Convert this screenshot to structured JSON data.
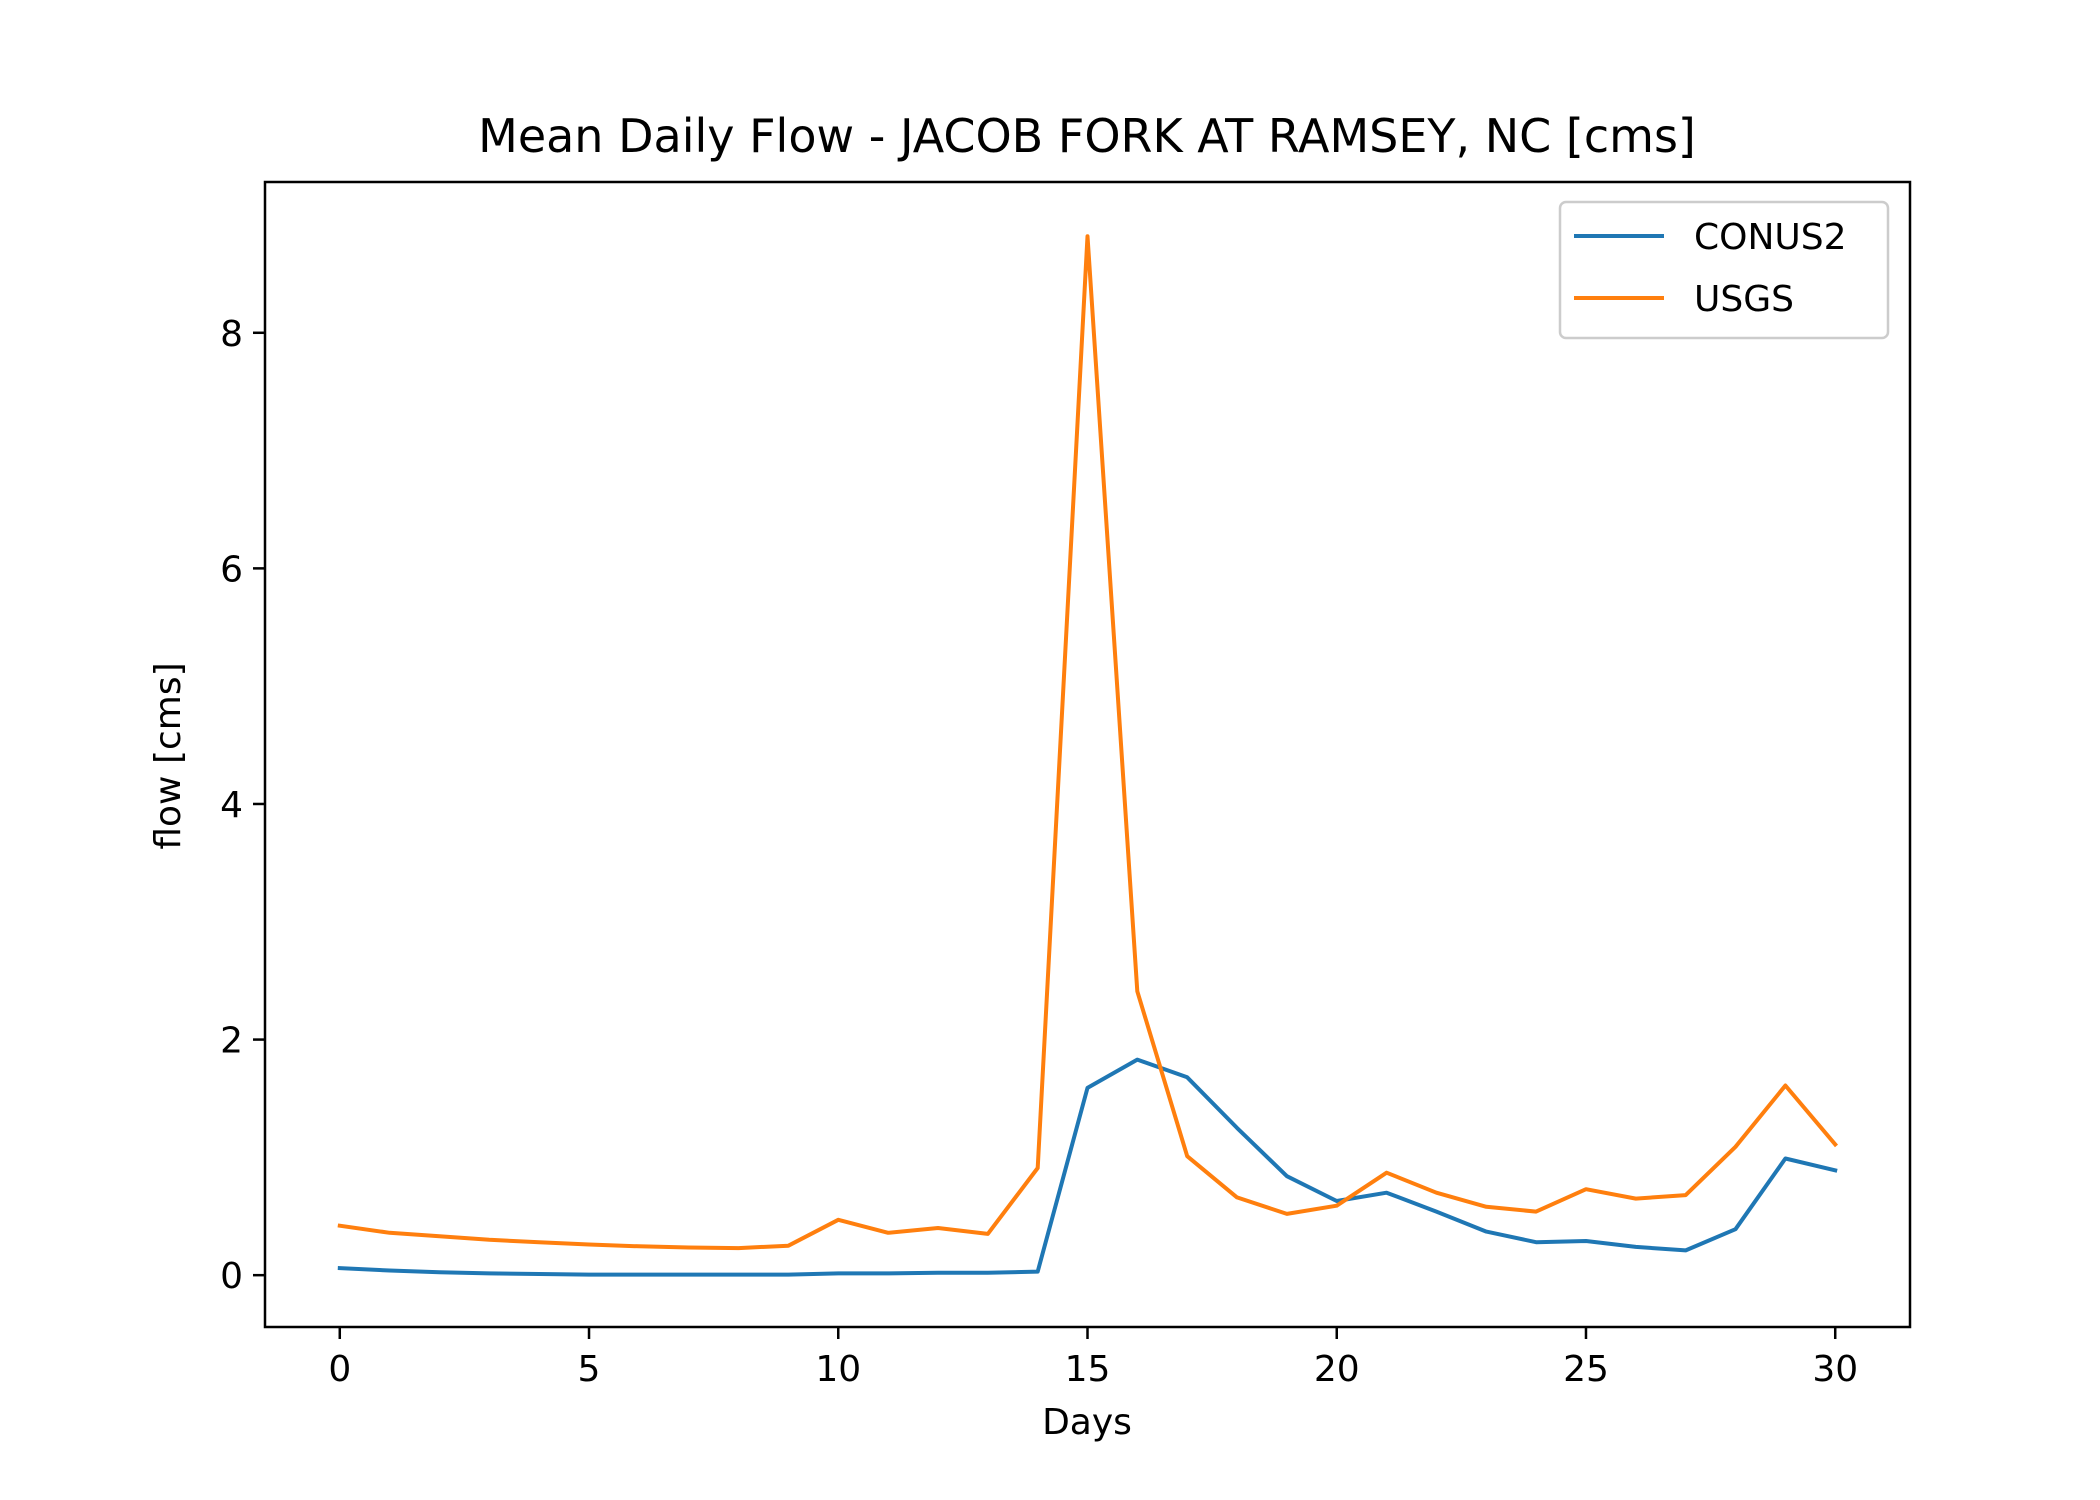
{
  "chart_data": {
    "type": "line",
    "title": "Mean Daily Flow - JACOB FORK AT RAMSEY, NC [cms]",
    "xlabel": "Days",
    "ylabel": "flow [cms]",
    "xlim": [
      -1.5,
      31.5
    ],
    "ylim": [
      -0.44,
      9.28
    ],
    "xticks": [
      0,
      5,
      10,
      15,
      20,
      25,
      30
    ],
    "yticks": [
      0,
      2,
      4,
      6,
      8
    ],
    "grid": false,
    "legend_position": "top-right",
    "x": [
      0,
      1,
      2,
      3,
      4,
      5,
      6,
      7,
      8,
      9,
      10,
      11,
      12,
      13,
      14,
      15,
      16,
      17,
      18,
      19,
      20,
      21,
      22,
      23,
      24,
      25,
      26,
      27,
      28,
      29,
      30
    ],
    "series": [
      {
        "name": "CONUS2",
        "color": "#1f77b4",
        "values": [
          0.06,
          0.04,
          0.025,
          0.015,
          0.01,
          0.005,
          0.005,
          0.005,
          0.005,
          0.005,
          0.015,
          0.015,
          0.02,
          0.02,
          0.03,
          1.59,
          1.83,
          1.68,
          1.25,
          0.84,
          0.63,
          0.7,
          0.54,
          0.37,
          0.28,
          0.29,
          0.24,
          0.21,
          0.39,
          0.99,
          0.89
        ]
      },
      {
        "name": "USGS",
        "color": "#ff7f0e",
        "values": [
          0.42,
          0.36,
          0.33,
          0.3,
          0.28,
          0.26,
          0.245,
          0.235,
          0.23,
          0.25,
          0.47,
          0.36,
          0.4,
          0.35,
          0.91,
          8.82,
          2.41,
          1.01,
          0.66,
          0.52,
          0.59,
          0.87,
          0.7,
          0.58,
          0.54,
          0.73,
          0.65,
          0.68,
          1.09,
          1.61,
          1.11
        ]
      }
    ]
  }
}
